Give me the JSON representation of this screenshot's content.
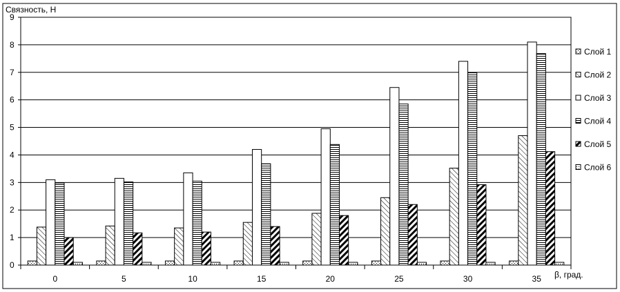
{
  "chart_data": {
    "type": "bar",
    "ylabel": "Связность, Н",
    "xlabel": "β, град.",
    "ylim": [
      0,
      9
    ],
    "yticks": [
      "0",
      "1",
      "2",
      "3",
      "4",
      "5",
      "6",
      "7",
      "8",
      "9"
    ],
    "grid": true,
    "legend_position": "right",
    "categories": [
      "0",
      "5",
      "10",
      "15",
      "20",
      "25",
      "30",
      "35"
    ],
    "series": [
      {
        "name": "Слой 1",
        "pattern": "dots",
        "values": [
          0.15,
          0.15,
          0.15,
          0.15,
          0.15,
          0.15,
          0.15,
          0.15
        ]
      },
      {
        "name": "Слой 2",
        "pattern": "diagonal-thin",
        "values": [
          1.38,
          1.42,
          1.35,
          1.55,
          1.88,
          2.45,
          3.52,
          4.7
        ]
      },
      {
        "name": "Слой 3",
        "pattern": "white",
        "values": [
          3.1,
          3.15,
          3.35,
          4.2,
          4.95,
          6.45,
          7.4,
          8.1
        ]
      },
      {
        "name": "Слой 4",
        "pattern": "horizontal",
        "values": [
          2.98,
          3.02,
          3.05,
          3.68,
          4.38,
          5.85,
          6.98,
          7.68
        ]
      },
      {
        "name": "Слой 5",
        "pattern": "diagonal-thick",
        "values": [
          1.0,
          1.17,
          1.2,
          1.4,
          1.8,
          2.2,
          2.92,
          4.12
        ]
      },
      {
        "name": "Слой 6",
        "pattern": "vertical-dots",
        "values": [
          0.1,
          0.1,
          0.1,
          0.1,
          0.1,
          0.1,
          0.1,
          0.1
        ]
      }
    ]
  }
}
